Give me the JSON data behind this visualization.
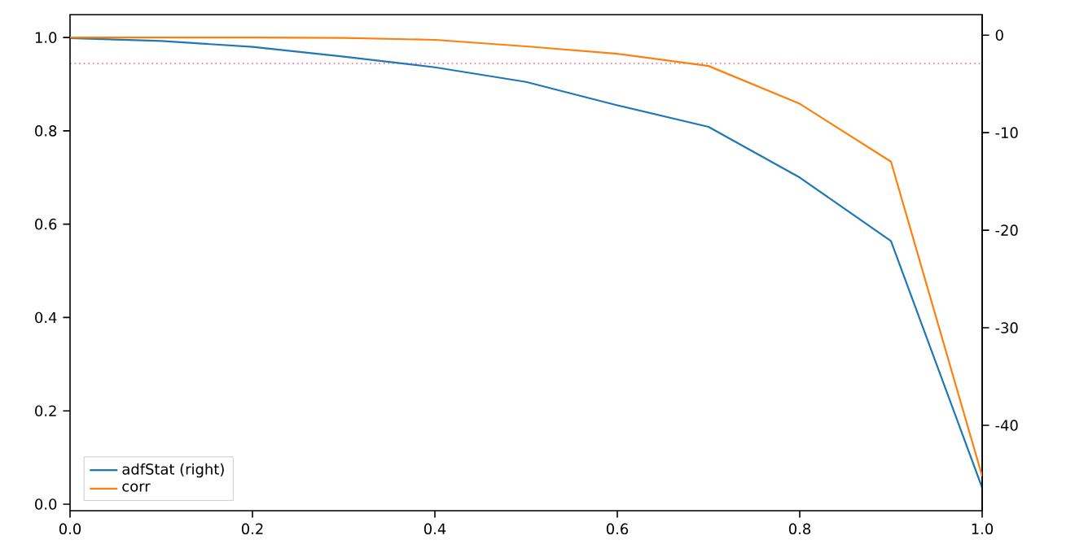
{
  "chart_data": {
    "type": "line",
    "x": [
      0,
      0.1,
      0.2,
      0.3,
      0.4,
      0.5,
      0.6,
      0.7,
      0.8,
      0.9,
      1.0
    ],
    "series": [
      {
        "name": "adfStat (right)",
        "color": "#1f77b4",
        "axis": "y2",
        "values": [
          -0.3,
          -0.6,
          -1.2,
          -2.2,
          -3.3,
          -4.8,
          -7.2,
          -9.4,
          -14.6,
          -21.1,
          -46.4
        ]
      },
      {
        "name": "corr",
        "color": "#ff7f0e",
        "values": [
          1.0,
          1.0,
          1.0,
          0.999,
          0.995,
          0.981,
          0.965,
          0.939,
          0.858,
          0.734,
          0.06
        ]
      }
    ],
    "xlim": [
      0,
      1
    ],
    "xticks": [
      {
        "value": 0,
        "label": "0.0"
      },
      0.2,
      0.4,
      0.6,
      0.8,
      {
        "value": 1,
        "label": "1.0"
      }
    ],
    "ylim": [
      -0.014,
      1.049
    ],
    "yticks": [
      {
        "value": 0,
        "label": "0.0"
      },
      0.2,
      0.4,
      0.6,
      0.8,
      {
        "value": 1,
        "label": "1.0"
      }
    ],
    "y2lim": [
      -48.75,
      2.1
    ],
    "y2ticks": [
      -40,
      -30,
      -20,
      -10,
      0
    ],
    "ref_lines": [
      {
        "axis": "y2",
        "value": -2.9,
        "color": "#f06080",
        "line_style": "dotted"
      }
    ],
    "legend": "bottom left",
    "marker": "none",
    "line_style": "solid"
  }
}
